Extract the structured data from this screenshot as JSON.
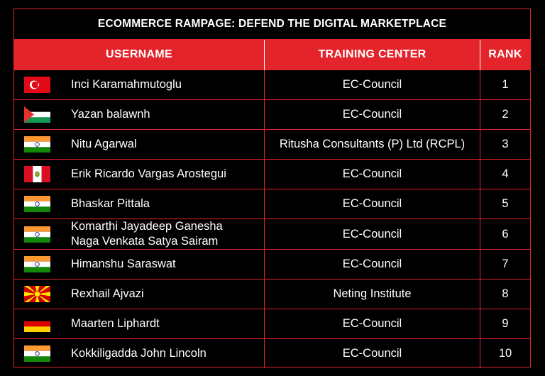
{
  "title": "ECOMMERCE RAMPAGE: DEFEND THE DIGITAL MARKETPLACE",
  "columns": {
    "username": "USERNAME",
    "center": "TRAINING CENTER",
    "rank": "RANK"
  },
  "rows": [
    {
      "flag": "turkey-flag-icon",
      "name1": "Inci Karamahmutoglu",
      "name2": "",
      "center": "EC-Council",
      "rank": "1"
    },
    {
      "flag": "palestine-flag-icon",
      "name1": "Yazan balawnh",
      "name2": "",
      "center": "EC-Council",
      "rank": "2"
    },
    {
      "flag": "india-flag-icon",
      "name1": "Nitu Agarwal",
      "name2": "",
      "center": "Ritusha Consultants (P) Ltd (RCPL)",
      "rank": "3"
    },
    {
      "flag": "peru-flag-icon",
      "name1": "Erik Ricardo Vargas Arostegui",
      "name2": "",
      "center": "EC-Council",
      "rank": "4"
    },
    {
      "flag": "india-flag-icon",
      "name1": "Bhaskar Pittala",
      "name2": "",
      "center": "EC-Council",
      "rank": "5"
    },
    {
      "flag": "india-flag-icon",
      "name1": "Komarthi Jayadeep Ganesha",
      "name2": "Naga Venkata Satya Sairam",
      "center": "EC-Council",
      "rank": "6"
    },
    {
      "flag": "india-flag-icon",
      "name1": "Himanshu Saraswat",
      "name2": "",
      "center": "EC-Council",
      "rank": "7"
    },
    {
      "flag": "macedonia-flag-icon",
      "name1": "Rexhail Ajvazi",
      "name2": "",
      "center": "Neting Institute",
      "rank": "8"
    },
    {
      "flag": "germany-flag-icon",
      "name1": "Maarten Liphardt",
      "name2": "",
      "center": "EC-Council",
      "rank": "9"
    },
    {
      "flag": "india-flag-icon",
      "name1": "Kokkiligadda John Lincoln",
      "name2": "",
      "center": "EC-Council",
      "rank": "10"
    }
  ]
}
